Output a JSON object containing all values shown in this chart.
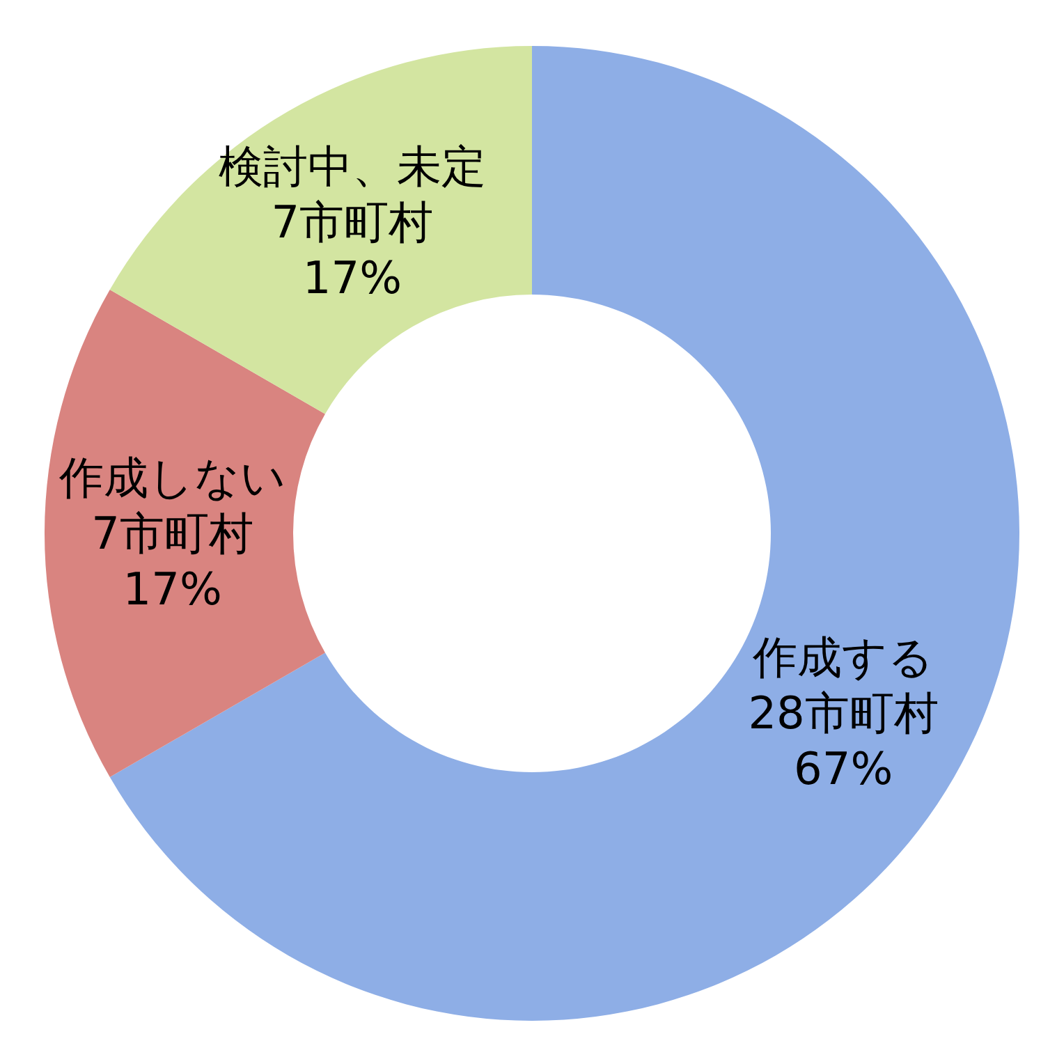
{
  "chart_data": {
    "type": "donut",
    "categories": [
      "作成する",
      "作成しない",
      "検討中、未定"
    ],
    "values": [
      28,
      7,
      7
    ],
    "value_labels": [
      "28市町村\n67%",
      "7市町村\n17%",
      "7市町村\n17%"
    ],
    "colors": [
      "#8eaee6",
      "#d98480",
      "#d3e5a1"
    ]
  }
}
